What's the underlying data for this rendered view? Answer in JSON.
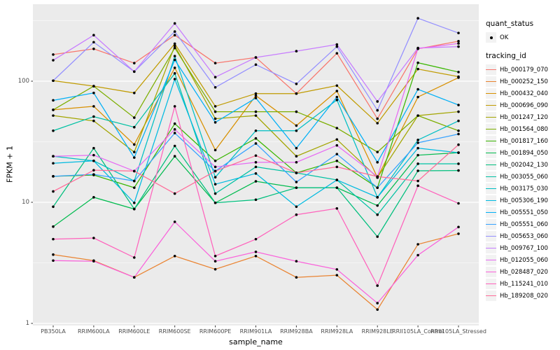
{
  "figure": {
    "background": "#FFFFFF",
    "panel_background": "#EBEBEB",
    "grid_color": "#FFFFFF",
    "point_color": "#000000",
    "axis_text_color": "#4D4D4D"
  },
  "axes": {
    "x_title": "sample_name",
    "y_title": "FPKM + 1"
  },
  "legend": {
    "quant_title": "quant_status",
    "quant_items": [
      {
        "label": "OK"
      }
    ],
    "tracking_title": "tracking_id"
  },
  "chart_data": {
    "type": "line",
    "title": "",
    "xlabel": "sample_name",
    "ylabel": "FPKM + 1",
    "y_scale": "log10",
    "ylim": [
      1,
      430
    ],
    "y_major_ticks": [
      1,
      10,
      100
    ],
    "y_minor_ticks": [
      3.162,
      31.62,
      316.2
    ],
    "grid": true,
    "legend_position": "right",
    "point_shape": "black-dot-at-every-vertex",
    "quant_status_legend": {
      "title": "quant_status",
      "items": [
        "OK"
      ]
    },
    "categories": [
      "PB350LA",
      "RRIM600LA",
      "RRIM600LE",
      "RRIM600SE",
      "RRIM600PE",
      "RRIM901LA",
      "RRIM928BA",
      "RRIM928LA",
      "RRIM928LE",
      "RRII105LA_Control",
      "RRII105LA_Stressed"
    ],
    "series": [
      {
        "name": "Hb_000179_070",
        "color": "#F8766D",
        "values": [
          166,
          185,
          141,
          240,
          141,
          157,
          79,
          170,
          49,
          185,
          214
        ]
      },
      {
        "name": "Hb_000252_150",
        "color": "#EA8331",
        "values": [
          3.7,
          3.3,
          2.4,
          3.6,
          2.8,
          3.6,
          2.4,
          2.5,
          1.3,
          4.5,
          5.5
        ]
      },
      {
        "name": "Hb_000432_040",
        "color": "#D89000",
        "values": [
          58,
          62,
          30,
          129,
          27,
          76,
          43,
          83,
          16,
          74,
          107
        ]
      },
      {
        "name": "Hb_000696_090",
        "color": "#C09B00",
        "values": [
          101,
          91,
          80,
          204,
          62,
          79,
          79,
          92,
          45,
          126,
          109
        ]
      },
      {
        "name": "Hb_001247_120",
        "color": "#A3A500",
        "values": [
          52,
          47,
          26,
          196,
          49,
          52,
          24,
          33,
          16,
          52,
          56
        ]
      },
      {
        "name": "Hb_001564_080",
        "color": "#7CAE00",
        "values": [
          58,
          91,
          50,
          188,
          56,
          56,
          56,
          41,
          26,
          52,
          39
        ]
      },
      {
        "name": "Hb_001817_160",
        "color": "#39B600",
        "values": [
          16.4,
          16.8,
          13.2,
          44.6,
          22,
          33.7,
          17.5,
          22,
          13.2,
          142,
          119
        ]
      },
      {
        "name": "Hb_001894_050",
        "color": "#00BB4E",
        "values": [
          6.3,
          11,
          8.8,
          24,
          9.9,
          14.9,
          13.2,
          13.2,
          9.4,
          24.5,
          25.7
        ]
      },
      {
        "name": "Hb_002042_130",
        "color": "#00BF7D",
        "values": [
          9.2,
          28,
          8.8,
          29.2,
          9.9,
          10.5,
          13.2,
          13.2,
          5.2,
          18.2,
          18.3
        ]
      },
      {
        "name": "Hb_003055_060",
        "color": "#00C1A3",
        "values": [
          39,
          51,
          41.7,
          116,
          11.8,
          19.6,
          17.5,
          15.3,
          7.9,
          20.8,
          20.8
        ]
      },
      {
        "name": "Hb_003175_030",
        "color": "#00BFC4",
        "values": [
          24,
          22,
          15,
          161,
          16.1,
          39,
          39,
          70,
          11,
          32.7,
          47
        ]
      },
      {
        "name": "Hb_005306_190",
        "color": "#00BAE0",
        "values": [
          21,
          22,
          9.9,
          104,
          14.1,
          17.3,
          9.2,
          15.3,
          11,
          28,
          25.7
        ]
      },
      {
        "name": "Hb_005551_050",
        "color": "#00B0F6",
        "values": [
          69.5,
          80,
          23.4,
          150,
          45.7,
          72.6,
          28,
          74,
          21.4,
          85.7,
          63.6
        ]
      },
      {
        "name": "Hb_005551_060",
        "color": "#35A2FF",
        "values": [
          16.4,
          17,
          15,
          37.3,
          18.1,
          30.6,
          14.7,
          25,
          13.2,
          31,
          36.6
        ]
      },
      {
        "name": "Hb_005653_060",
        "color": "#9590FF",
        "values": [
          101,
          210,
          120,
          257,
          89,
          137,
          95,
          193,
          57.5,
          331,
          250
        ]
      },
      {
        "name": "Hb_009767_100",
        "color": "#C77CFF",
        "values": [
          149,
          240,
          120,
          300,
          108,
          157,
          177,
          201,
          68,
          188,
          193
        ]
      },
      {
        "name": "Hb_012055_060",
        "color": "#E76BF3",
        "values": [
          24,
          24.5,
          18.1,
          40,
          19.6,
          21.4,
          21.4,
          29.5,
          16.3,
          186,
          205
        ]
      },
      {
        "name": "Hb_028487_020",
        "color": "#FA62DB",
        "values": [
          3.3,
          3.26,
          2.4,
          6.9,
          3.26,
          3.9,
          3.26,
          2.79,
          1.47,
          3.66,
          6.25
        ]
      },
      {
        "name": "Hb_115241_010",
        "color": "#FF62BC",
        "values": [
          4.96,
          5.07,
          3.5,
          62,
          3.6,
          4.96,
          7.9,
          8.9,
          2.05,
          13.7,
          9.8
        ]
      },
      {
        "name": "Hb_189208_020",
        "color": "#FF6A98",
        "values": [
          12.3,
          18.4,
          18.1,
          11.8,
          18.1,
          24.3,
          17.5,
          19.6,
          16.3,
          15,
          29.9
        ]
      }
    ]
  }
}
